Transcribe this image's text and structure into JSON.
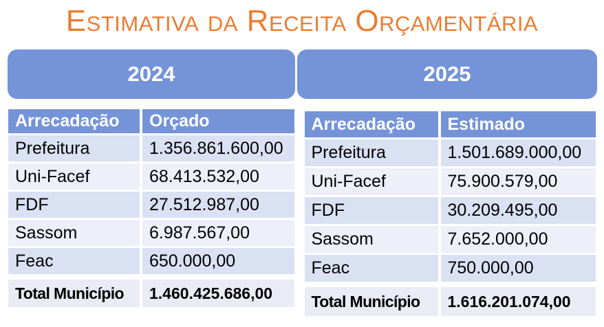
{
  "title": "Estimativa da Receita Orçamentária",
  "colors": {
    "accent_orange": "#EC7C30",
    "banner_blue": "#7493D8",
    "row_band_dark": "#D9E1F2",
    "row_band_light": "#EDF0F8",
    "row_total": "#E9ECF5"
  },
  "chart_data": [
    {
      "type": "table",
      "year": "2024",
      "columns": [
        "Arrecadação",
        "Orçado"
      ],
      "rows": [
        [
          "Prefeitura",
          "1.356.861.600,00"
        ],
        [
          "Uni-Facef",
          "68.413.532,00"
        ],
        [
          "FDF",
          "27.512.987,00"
        ],
        [
          "Sassom",
          "6.987.567,00"
        ],
        [
          "Feac",
          "650.000,00"
        ]
      ],
      "total_row": [
        "Total Município",
        "1.460.425.686,00"
      ]
    },
    {
      "type": "table",
      "year": "2025",
      "columns": [
        "Arrecadação",
        "Estimado"
      ],
      "rows": [
        [
          "Prefeitura",
          "1.501.689.000,00"
        ],
        [
          "Uni-Facef",
          "75.900.579,00"
        ],
        [
          "FDF",
          "30.209.495,00"
        ],
        [
          "Sassom",
          "7.652.000,00"
        ],
        [
          "Feac",
          "750.000,00"
        ]
      ],
      "total_row": [
        "Total Município",
        "1.616.201.074,00"
      ]
    }
  ]
}
